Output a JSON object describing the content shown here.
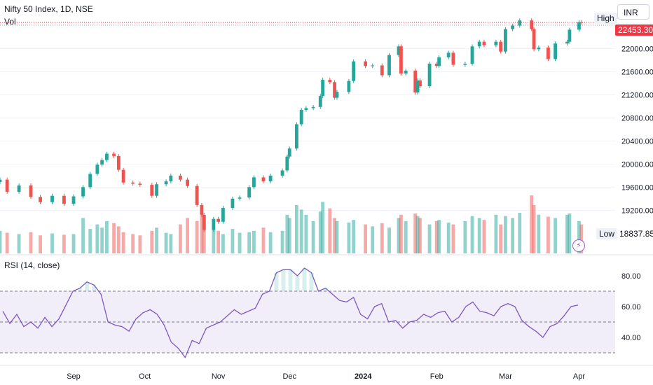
{
  "header": {
    "title": "Nifty 50 Index, 1D, NSE",
    "volume_label": "Vol",
    "rsi_label": "RSI (14, close)",
    "currency": "INR",
    "high_label": "High",
    "low_label": "Low",
    "low_value": "18837.85",
    "last_price_label": "22453.30"
  },
  "icons": {
    "bolt": "lightning-icon"
  },
  "colors": {
    "up": "#26a69a",
    "down": "#ef5350",
    "rsi_line": "#7e57c2",
    "last_price": "#f23645"
  },
  "chart_data": [
    {
      "type": "candlestick",
      "y_tick_labels": [
        "22000.00",
        "21600.00",
        "21200.00",
        "20800.00",
        "20400.00",
        "20000.00",
        "19600.00",
        "19200.00"
      ],
      "ylim": [
        18840,
        22480
      ],
      "x_tick_labels": [
        "Sep",
        "Oct",
        "Nov",
        "Dec",
        "2024",
        "Feb",
        "Mar",
        "Apr"
      ],
      "xlim": [
        "2023-08-01",
        "2024-04-05"
      ],
      "close_series": [
        [
          "2023-08-01",
          19730
        ],
        [
          "2023-08-04",
          19520
        ],
        [
          "2023-08-09",
          19630
        ],
        [
          "2023-08-14",
          19430
        ],
        [
          "2023-08-18",
          19340
        ],
        [
          "2023-08-23",
          19450
        ],
        [
          "2023-08-28",
          19310
        ],
        [
          "2023-09-01",
          19440
        ],
        [
          "2023-09-05",
          19600
        ],
        [
          "2023-09-08",
          19830
        ],
        [
          "2023-09-11",
          19990
        ],
        [
          "2023-09-13",
          20070
        ],
        [
          "2023-09-15",
          20180
        ],
        [
          "2023-09-18",
          20140
        ],
        [
          "2023-09-20",
          19900
        ],
        [
          "2023-09-22",
          19680
        ],
        [
          "2023-09-26",
          19660
        ],
        [
          "2023-09-29",
          19640
        ],
        [
          "2023-10-04",
          19450
        ],
        [
          "2023-10-06",
          19650
        ],
        [
          "2023-10-10",
          19700
        ],
        [
          "2023-10-12",
          19800
        ],
        [
          "2023-10-16",
          19730
        ],
        [
          "2023-10-19",
          19620
        ],
        [
          "2023-10-23",
          19290
        ],
        [
          "2023-10-25",
          19120
        ],
        [
          "2023-10-26",
          18860
        ],
        [
          "2023-10-30",
          19050
        ],
        [
          "2023-11-01",
          19000
        ],
        [
          "2023-11-03",
          19240
        ],
        [
          "2023-11-07",
          19400
        ],
        [
          "2023-11-10",
          19420
        ],
        [
          "2023-11-14",
          19600
        ],
        [
          "2023-11-16",
          19770
        ],
        [
          "2023-11-20",
          19700
        ],
        [
          "2023-11-23",
          19800
        ],
        [
          "2023-11-28",
          19890
        ],
        [
          "2023-11-30",
          20130
        ],
        [
          "2023-12-01",
          20270
        ],
        [
          "2023-12-04",
          20690
        ],
        [
          "2023-12-06",
          20940
        ],
        [
          "2023-12-08",
          20970
        ],
        [
          "2023-12-11",
          20990
        ],
        [
          "2023-12-14",
          21180
        ],
        [
          "2023-12-15",
          21460
        ],
        [
          "2023-12-18",
          21420
        ],
        [
          "2023-12-20",
          21150
        ],
        [
          "2023-12-21",
          21250
        ],
        [
          "2023-12-26",
          21440
        ],
        [
          "2023-12-28",
          21780
        ],
        [
          "2024-01-02",
          21700
        ],
        [
          "2024-01-05",
          21710
        ],
        [
          "2024-01-09",
          21540
        ],
        [
          "2024-01-12",
          21890
        ],
        [
          "2024-01-16",
          22040
        ],
        [
          "2024-01-17",
          21570
        ],
        [
          "2024-01-19",
          21620
        ],
        [
          "2024-01-23",
          21240
        ],
        [
          "2024-01-24",
          21450
        ],
        [
          "2024-01-25",
          21350
        ],
        [
          "2024-01-29",
          21740
        ],
        [
          "2024-02-01",
          21700
        ],
        [
          "2024-02-02",
          21850
        ],
        [
          "2024-02-06",
          21930
        ],
        [
          "2024-02-08",
          21720
        ],
        [
          "2024-02-13",
          21740
        ],
        [
          "2024-02-16",
          22040
        ],
        [
          "2024-02-19",
          22120
        ],
        [
          "2024-02-21",
          22060
        ],
        [
          "2024-02-26",
          22120
        ],
        [
          "2024-02-28",
          21950
        ],
        [
          "2024-03-01",
          22340
        ],
        [
          "2024-03-04",
          22400
        ],
        [
          "2024-03-07",
          22490
        ],
        [
          "2024-03-12",
          22340
        ],
        [
          "2024-03-13",
          21990
        ],
        [
          "2024-03-15",
          22020
        ],
        [
          "2024-03-19",
          21820
        ],
        [
          "2024-03-22",
          22090
        ],
        [
          "2024-03-27",
          22120
        ],
        [
          "2024-03-28",
          22330
        ],
        [
          "2024-04-01",
          22460
        ],
        [
          "2024-04-02",
          22453
        ]
      ]
    },
    {
      "type": "bar",
      "name": "Vol",
      "note_from_chart": "volume bars colored by candle direction",
      "values_relative": [
        0.35,
        0.32,
        0.3,
        0.33,
        0.28,
        0.31,
        0.29,
        0.3,
        0.55,
        0.38,
        0.45,
        0.4,
        0.5,
        0.47,
        0.42,
        0.33,
        0.3,
        0.28,
        0.35,
        0.4,
        0.32,
        0.3,
        0.45,
        0.55,
        0.5,
        0.6,
        0.58,
        0.4,
        0.35,
        0.3,
        0.38,
        0.32,
        0.33,
        0.35,
        0.4,
        0.33,
        0.35,
        0.6,
        0.55,
        0.75,
        0.68,
        0.6,
        0.5,
        0.65,
        0.8,
        0.7,
        0.55,
        0.5,
        0.48,
        0.52,
        0.45,
        0.42,
        0.47,
        0.4,
        0.55,
        0.6,
        0.5,
        0.62,
        0.58,
        0.55,
        0.45,
        0.5,
        0.52,
        0.48,
        0.45,
        0.5,
        0.58,
        0.55,
        0.52,
        0.6,
        0.45,
        0.58,
        0.55,
        0.63,
        0.9,
        0.75,
        0.6,
        0.57,
        0.55,
        0.6,
        0.62,
        0.5,
        0.45
      ]
    },
    {
      "type": "line",
      "name": "RSI (14, close)",
      "y_tick_labels": [
        "80.00",
        "60.00",
        "40.00"
      ],
      "ylim": [
        25,
        90
      ],
      "bands": [
        30,
        50,
        70
      ],
      "values": [
        57,
        49,
        55,
        47,
        50,
        46,
        53,
        47,
        52,
        61,
        70,
        72,
        76,
        74,
        68,
        50,
        48,
        47,
        44,
        52,
        56,
        58,
        55,
        48,
        37,
        33,
        27,
        38,
        36,
        46,
        48,
        50,
        54,
        58,
        55,
        57,
        59,
        68,
        70,
        82,
        84,
        84,
        80,
        85,
        82,
        70,
        72,
        68,
        64,
        63,
        66,
        55,
        52,
        60,
        62,
        50,
        51,
        46,
        50,
        51,
        55,
        53,
        56,
        57,
        50,
        53,
        60,
        63,
        57,
        56,
        54,
        60,
        62,
        60,
        51,
        47,
        44,
        40,
        47,
        49,
        54,
        60,
        61
      ]
    }
  ]
}
